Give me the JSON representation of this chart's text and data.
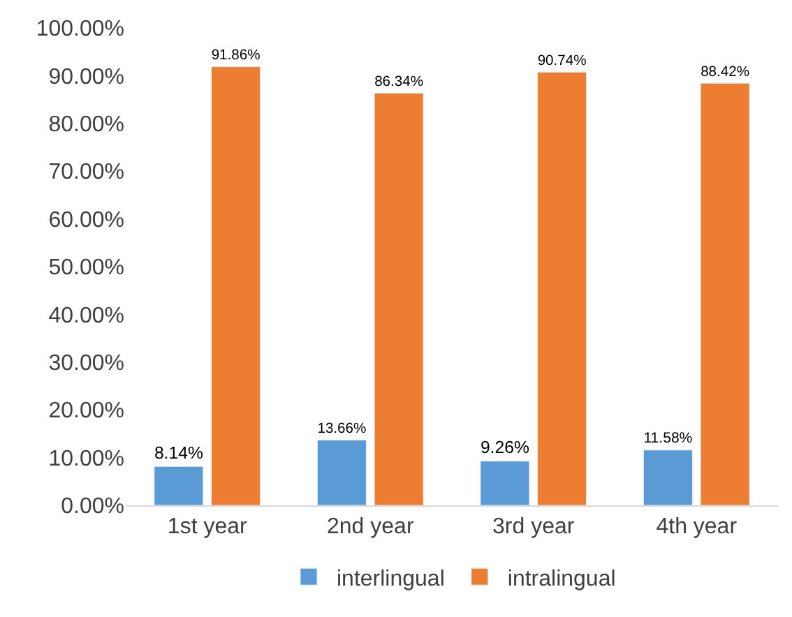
{
  "chart_data": {
    "type": "bar",
    "categories": [
      "1st year",
      "2nd year",
      "3rd year",
      "4th year"
    ],
    "series": [
      {
        "name": "interlingual",
        "color": "#5b9bd5",
        "values": [
          8.14,
          13.66,
          9.26,
          11.58
        ],
        "value_labels": [
          "8.14%",
          "13.66%",
          "9.26%",
          "11.58%"
        ]
      },
      {
        "name": "intralingual",
        "color": "#ed7d31",
        "values": [
          91.86,
          86.34,
          90.74,
          88.42
        ],
        "value_labels": [
          "91.86%",
          "86.34%",
          "90.74%",
          "88.42%"
        ]
      }
    ],
    "ylim": [
      0,
      100
    ],
    "yticks": [
      {
        "value": 0,
        "label": "0.00%"
      },
      {
        "value": 10,
        "label": "10.00%"
      },
      {
        "value": 20,
        "label": "20.00%"
      },
      {
        "value": 30,
        "label": "30.00%"
      },
      {
        "value": 40,
        "label": "40.00%"
      },
      {
        "value": 50,
        "label": "50.00%"
      },
      {
        "value": 60,
        "label": "60.00%"
      },
      {
        "value": 70,
        "label": "70.00%"
      },
      {
        "value": 80,
        "label": "80.00%"
      },
      {
        "value": 90,
        "label": "90.00%"
      },
      {
        "value": 100,
        "label": "100.00%"
      }
    ],
    "grid": false,
    "legend": "bottom"
  }
}
